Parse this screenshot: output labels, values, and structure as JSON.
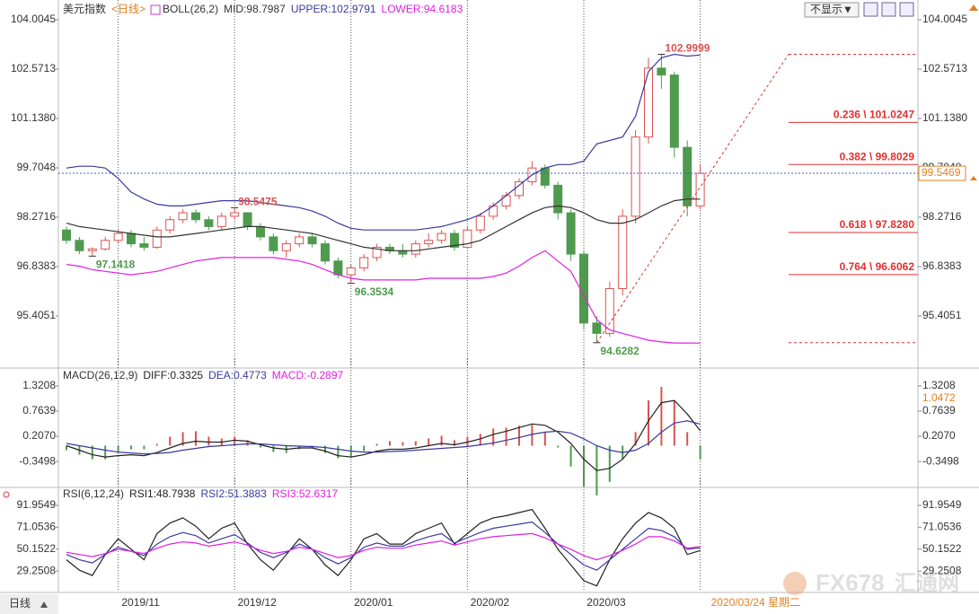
{
  "page": {
    "button": "不显示▼",
    "bottom_tab": "日线",
    "watermark": "FX678",
    "watermark_cn": "汇通网"
  },
  "chart_data": [
    {
      "type": "candlestick",
      "title": "美元指数",
      "subtitle": "<日线>",
      "indicator": "BOLL(26,2)",
      "categories": [
        null,
        null,
        null,
        null,
        "2019/11",
        null,
        null,
        null,
        null,
        null,
        null,
        null,
        null,
        "2019/12",
        null,
        null,
        null,
        null,
        null,
        null,
        null,
        null,
        "2020/01",
        null,
        null,
        null,
        null,
        null,
        null,
        null,
        null,
        "2020/02",
        null,
        null,
        null,
        null,
        null,
        null,
        null,
        null,
        "2020/03",
        null,
        null,
        null,
        null,
        null,
        null,
        null,
        null,
        "2020/03/24 星期二"
      ],
      "open": [
        97.9,
        97.6,
        97.3,
        97.35,
        97.6,
        97.8,
        97.5,
        97.4,
        97.9,
        98.2,
        98.4,
        98.2,
        98.0,
        98.3,
        98.4,
        98.0,
        97.7,
        97.3,
        97.5,
        97.7,
        97.5,
        97.0,
        96.6,
        96.8,
        97.1,
        97.4,
        97.3,
        97.2,
        97.5,
        97.6,
        97.8,
        97.4,
        97.9,
        98.3,
        98.6,
        98.9,
        99.3,
        99.7,
        99.2,
        98.4,
        97.2,
        95.2,
        94.9,
        96.2,
        98.3,
        100.6,
        102.6,
        102.4,
        100.3,
        98.6
      ],
      "high": [
        98.0,
        97.7,
        97.4,
        97.7,
        97.9,
        97.9,
        97.7,
        98.0,
        98.3,
        98.5,
        98.5,
        98.3,
        98.4,
        98.5475,
        98.4,
        98.1,
        97.8,
        97.6,
        97.8,
        97.8,
        97.6,
        97.1,
        96.9,
        97.2,
        97.5,
        97.5,
        97.5,
        97.6,
        97.8,
        97.9,
        97.9,
        98.0,
        98.4,
        98.7,
        99.0,
        99.4,
        99.9,
        99.8,
        99.3,
        98.5,
        97.3,
        95.4,
        96.4,
        98.5,
        100.8,
        102.9,
        102.9999,
        102.5,
        100.5,
        99.8
      ],
      "low": [
        97.5,
        97.2,
        97.1418,
        97.3,
        97.5,
        97.4,
        97.3,
        97.35,
        97.8,
        98.1,
        98.1,
        97.9,
        97.9,
        98.2,
        97.9,
        97.6,
        97.2,
        97.1,
        97.4,
        97.4,
        96.9,
        96.5,
        96.3534,
        96.7,
        97.0,
        97.2,
        97.1,
        97.1,
        97.4,
        97.5,
        97.3,
        97.4,
        97.8,
        98.2,
        98.5,
        98.8,
        99.2,
        99.1,
        98.2,
        97.0,
        95.0,
        94.6282,
        94.8,
        96.0,
        98.1,
        100.4,
        102.0,
        100.0,
        98.3,
        98.5
      ],
      "close": [
        97.6,
        97.3,
        97.35,
        97.6,
        97.8,
        97.5,
        97.4,
        97.9,
        98.2,
        98.4,
        98.2,
        98.0,
        98.3,
        98.4,
        98.0,
        97.7,
        97.3,
        97.5,
        97.7,
        97.5,
        97.0,
        96.6,
        96.8,
        97.1,
        97.4,
        97.3,
        97.2,
        97.5,
        97.6,
        97.8,
        97.4,
        97.9,
        98.3,
        98.6,
        98.9,
        99.3,
        99.7,
        99.2,
        98.4,
        97.2,
        95.2,
        94.9,
        96.2,
        98.3,
        100.6,
        102.6,
        102.4,
        100.3,
        98.6,
        99.5469
      ],
      "up_color": "#d9534f",
      "down_color": "#4f9a4f",
      "series": [
        {
          "name": "MID:98.7987",
          "color": "#333333",
          "values": [
            98.1,
            98.0,
            97.95,
            97.9,
            97.85,
            97.8,
            97.75,
            97.7,
            97.7,
            97.75,
            97.8,
            97.85,
            97.9,
            97.95,
            98.0,
            98.0,
            97.95,
            97.9,
            97.85,
            97.8,
            97.7,
            97.6,
            97.5,
            97.4,
            97.35,
            97.3,
            97.3,
            97.3,
            97.35,
            97.4,
            97.45,
            97.5,
            97.6,
            97.8,
            98.0,
            98.2,
            98.4,
            98.55,
            98.6,
            98.55,
            98.4,
            98.2,
            98.1,
            98.1,
            98.2,
            98.4,
            98.6,
            98.75,
            98.8,
            98.7987
          ]
        },
        {
          "name": "UPPER:102.9791",
          "color": "#3a3aa0",
          "values": [
            99.7,
            99.75,
            99.75,
            99.7,
            99.4,
            99.0,
            98.8,
            98.65,
            98.6,
            98.6,
            98.65,
            98.7,
            98.75,
            98.75,
            98.75,
            98.7,
            98.65,
            98.6,
            98.55,
            98.45,
            98.3,
            98.1,
            97.95,
            97.9,
            97.9,
            97.9,
            97.9,
            97.9,
            97.95,
            98.0,
            98.1,
            98.2,
            98.35,
            98.6,
            98.9,
            99.2,
            99.5,
            99.7,
            99.8,
            99.8,
            99.9,
            100.4,
            100.5,
            100.6,
            101.2,
            102.5,
            102.9,
            103.0,
            102.95,
            102.9791
          ]
        },
        {
          "name": "LOWER:94.6183",
          "color": "#e020e0",
          "values": [
            96.9,
            96.85,
            96.75,
            96.7,
            96.65,
            96.6,
            96.65,
            96.7,
            96.8,
            96.9,
            97.0,
            97.05,
            97.1,
            97.1,
            97.1,
            97.1,
            97.1,
            97.05,
            97.0,
            96.9,
            96.75,
            96.6,
            96.5,
            96.45,
            96.45,
            96.45,
            96.45,
            96.45,
            96.5,
            96.5,
            96.5,
            96.5,
            96.5,
            96.55,
            96.65,
            96.85,
            97.1,
            97.3,
            97.0,
            96.7,
            96.0,
            95.3,
            95.0,
            94.9,
            94.8,
            94.7,
            94.65,
            94.62,
            94.62,
            94.6183
          ]
        }
      ],
      "ylim": [
        93.945,
        104.265
      ],
      "yticks": [
        104.0045,
        102.5713,
        {
          "value": 101.138,
          "label": "101.1380"
        },
        99.7048,
        98.2716,
        96.8383,
        95.4051
      ],
      "annotations": [
        {
          "x": 46,
          "value": 102.9999,
          "label": "102.9999",
          "color": "#d9534f"
        },
        {
          "x": 13,
          "value": 98.5475,
          "label": "98.5475",
          "color": "#d9534f"
        },
        {
          "x": 2,
          "value": 97.1418,
          "label": "97.1418",
          "color": "#4f9a4f"
        },
        {
          "x": 22,
          "value": 96.3534,
          "label": "96.3534",
          "color": "#4f9a4f"
        },
        {
          "x": 41,
          "value": 94.6282,
          "label": "94.6282",
          "color": "#4f9a4f"
        }
      ],
      "fibonacci": [
        {
          "value": 101.0247,
          "label": "0.236 \\ 101.0247"
        },
        {
          "value": 99.8029,
          "label": "0.382 \\ 99.8029"
        },
        {
          "value": 97.828,
          "label": "0.618 \\ 97.8280"
        },
        {
          "value": 96.6062,
          "label": "0.764 \\ 96.6062"
        }
      ],
      "fib_color": "#e03030",
      "current": {
        "value": 99.5469,
        "label": "99.5469"
      }
    },
    {
      "type": "macd",
      "title": "MACD(26,12,9)",
      "series": [
        {
          "name": "DIFF:0.3325",
          "color": "#222222",
          "values": [
            0.0,
            -0.1,
            -0.2,
            -0.25,
            -0.22,
            -0.2,
            -0.22,
            -0.15,
            -0.05,
            0.05,
            0.1,
            0.08,
            0.08,
            0.12,
            0.1,
            0.02,
            -0.05,
            -0.08,
            -0.05,
            -0.05,
            -0.12,
            -0.22,
            -0.25,
            -0.2,
            -0.12,
            -0.08,
            -0.08,
            -0.05,
            0.0,
            0.05,
            0.02,
            0.08,
            0.15,
            0.25,
            0.32,
            0.4,
            0.48,
            0.45,
            0.3,
            0.05,
            -0.3,
            -0.55,
            -0.5,
            -0.3,
            0.05,
            0.55,
            0.95,
            1.0,
            0.7,
            0.3325
          ]
        },
        {
          "name": "DEA:0.4773",
          "color": "#3a3aa0",
          "values": [
            0.05,
            0.0,
            -0.05,
            -0.1,
            -0.14,
            -0.16,
            -0.18,
            -0.17,
            -0.15,
            -0.1,
            -0.06,
            -0.02,
            0.0,
            0.02,
            0.04,
            0.04,
            0.02,
            0.0,
            -0.01,
            -0.02,
            -0.04,
            -0.08,
            -0.12,
            -0.14,
            -0.14,
            -0.13,
            -0.12,
            -0.1,
            -0.08,
            -0.06,
            -0.04,
            -0.02,
            0.02,
            0.06,
            0.12,
            0.18,
            0.25,
            0.3,
            0.32,
            0.28,
            0.15,
            0.0,
            -0.1,
            -0.15,
            -0.1,
            0.05,
            0.3,
            0.5,
            0.55,
            0.4773
          ]
        },
        {
          "name": "MACD:-0.2897",
          "color": "#e020e0",
          "style": "bar",
          "up_color": "#d9534f",
          "down_color": "#4f9a4f",
          "values": [
            -0.1,
            -0.2,
            -0.3,
            -0.3,
            -0.16,
            -0.08,
            -0.08,
            0.04,
            0.2,
            0.3,
            0.32,
            0.2,
            0.16,
            0.2,
            0.12,
            -0.04,
            -0.14,
            -0.16,
            -0.08,
            -0.06,
            -0.16,
            -0.28,
            -0.26,
            -0.12,
            0.04,
            0.1,
            0.08,
            0.1,
            0.16,
            0.22,
            0.12,
            0.2,
            0.26,
            0.38,
            0.4,
            0.44,
            0.46,
            0.3,
            -0.04,
            -0.46,
            -0.9,
            -1.1,
            -0.8,
            -0.3,
            0.3,
            1.0,
            1.3,
            1.0,
            0.3,
            -0.2897
          ]
        }
      ],
      "ylim": [
        -0.863,
        1.676
      ],
      "yticks": [
        1.3208,
        0.7639,
        {
          "value": 0.207,
          "label": "0.2070"
        },
        -0.3498
      ],
      "current": {
        "value": 1.0472,
        "label": "1.0472"
      }
    },
    {
      "type": "rsi",
      "title": "RSI(6,12,24)",
      "series": [
        {
          "name": "RSI1:48.7938",
          "color": "#222222",
          "values": [
            40,
            30,
            25,
            45,
            60,
            50,
            40,
            65,
            75,
            80,
            72,
            60,
            70,
            75,
            55,
            40,
            30,
            45,
            60,
            50,
            35,
            25,
            40,
            60,
            65,
            55,
            55,
            65,
            70,
            75,
            55,
            65,
            75,
            80,
            82,
            85,
            88,
            70,
            50,
            35,
            20,
            15,
            40,
            60,
            75,
            85,
            80,
            70,
            45,
            48.7938
          ]
        },
        {
          "name": "RSI2:51.3883",
          "color": "#3a3aa0",
          "values": [
            45,
            40,
            37,
            45,
            52,
            48,
            44,
            55,
            62,
            66,
            63,
            56,
            60,
            64,
            56,
            47,
            42,
            47,
            55,
            50,
            42,
            36,
            42,
            52,
            56,
            53,
            53,
            58,
            62,
            65,
            56,
            61,
            66,
            70,
            72,
            74,
            76,
            66,
            55,
            45,
            35,
            30,
            40,
            50,
            60,
            70,
            68,
            62,
            50,
            51.3883
          ]
        },
        {
          "name": "RSI3:52.6317",
          "color": "#e020e0",
          "values": [
            47,
            45,
            43,
            46,
            50,
            48,
            46,
            51,
            55,
            57,
            56,
            53,
            55,
            57,
            54,
            49,
            46,
            48,
            52,
            50,
            46,
            42,
            44,
            49,
            52,
            51,
            51,
            54,
            56,
            58,
            54,
            57,
            60,
            62,
            63,
            64,
            65,
            61,
            55,
            50,
            44,
            40,
            44,
            49,
            55,
            62,
            62,
            58,
            51,
            52.6317
          ]
        }
      ],
      "ylim": [
        10.5,
        107.3
      ],
      "yticks": [
        91.9549,
        71.0536,
        50.1522,
        29.2508
      ]
    }
  ]
}
